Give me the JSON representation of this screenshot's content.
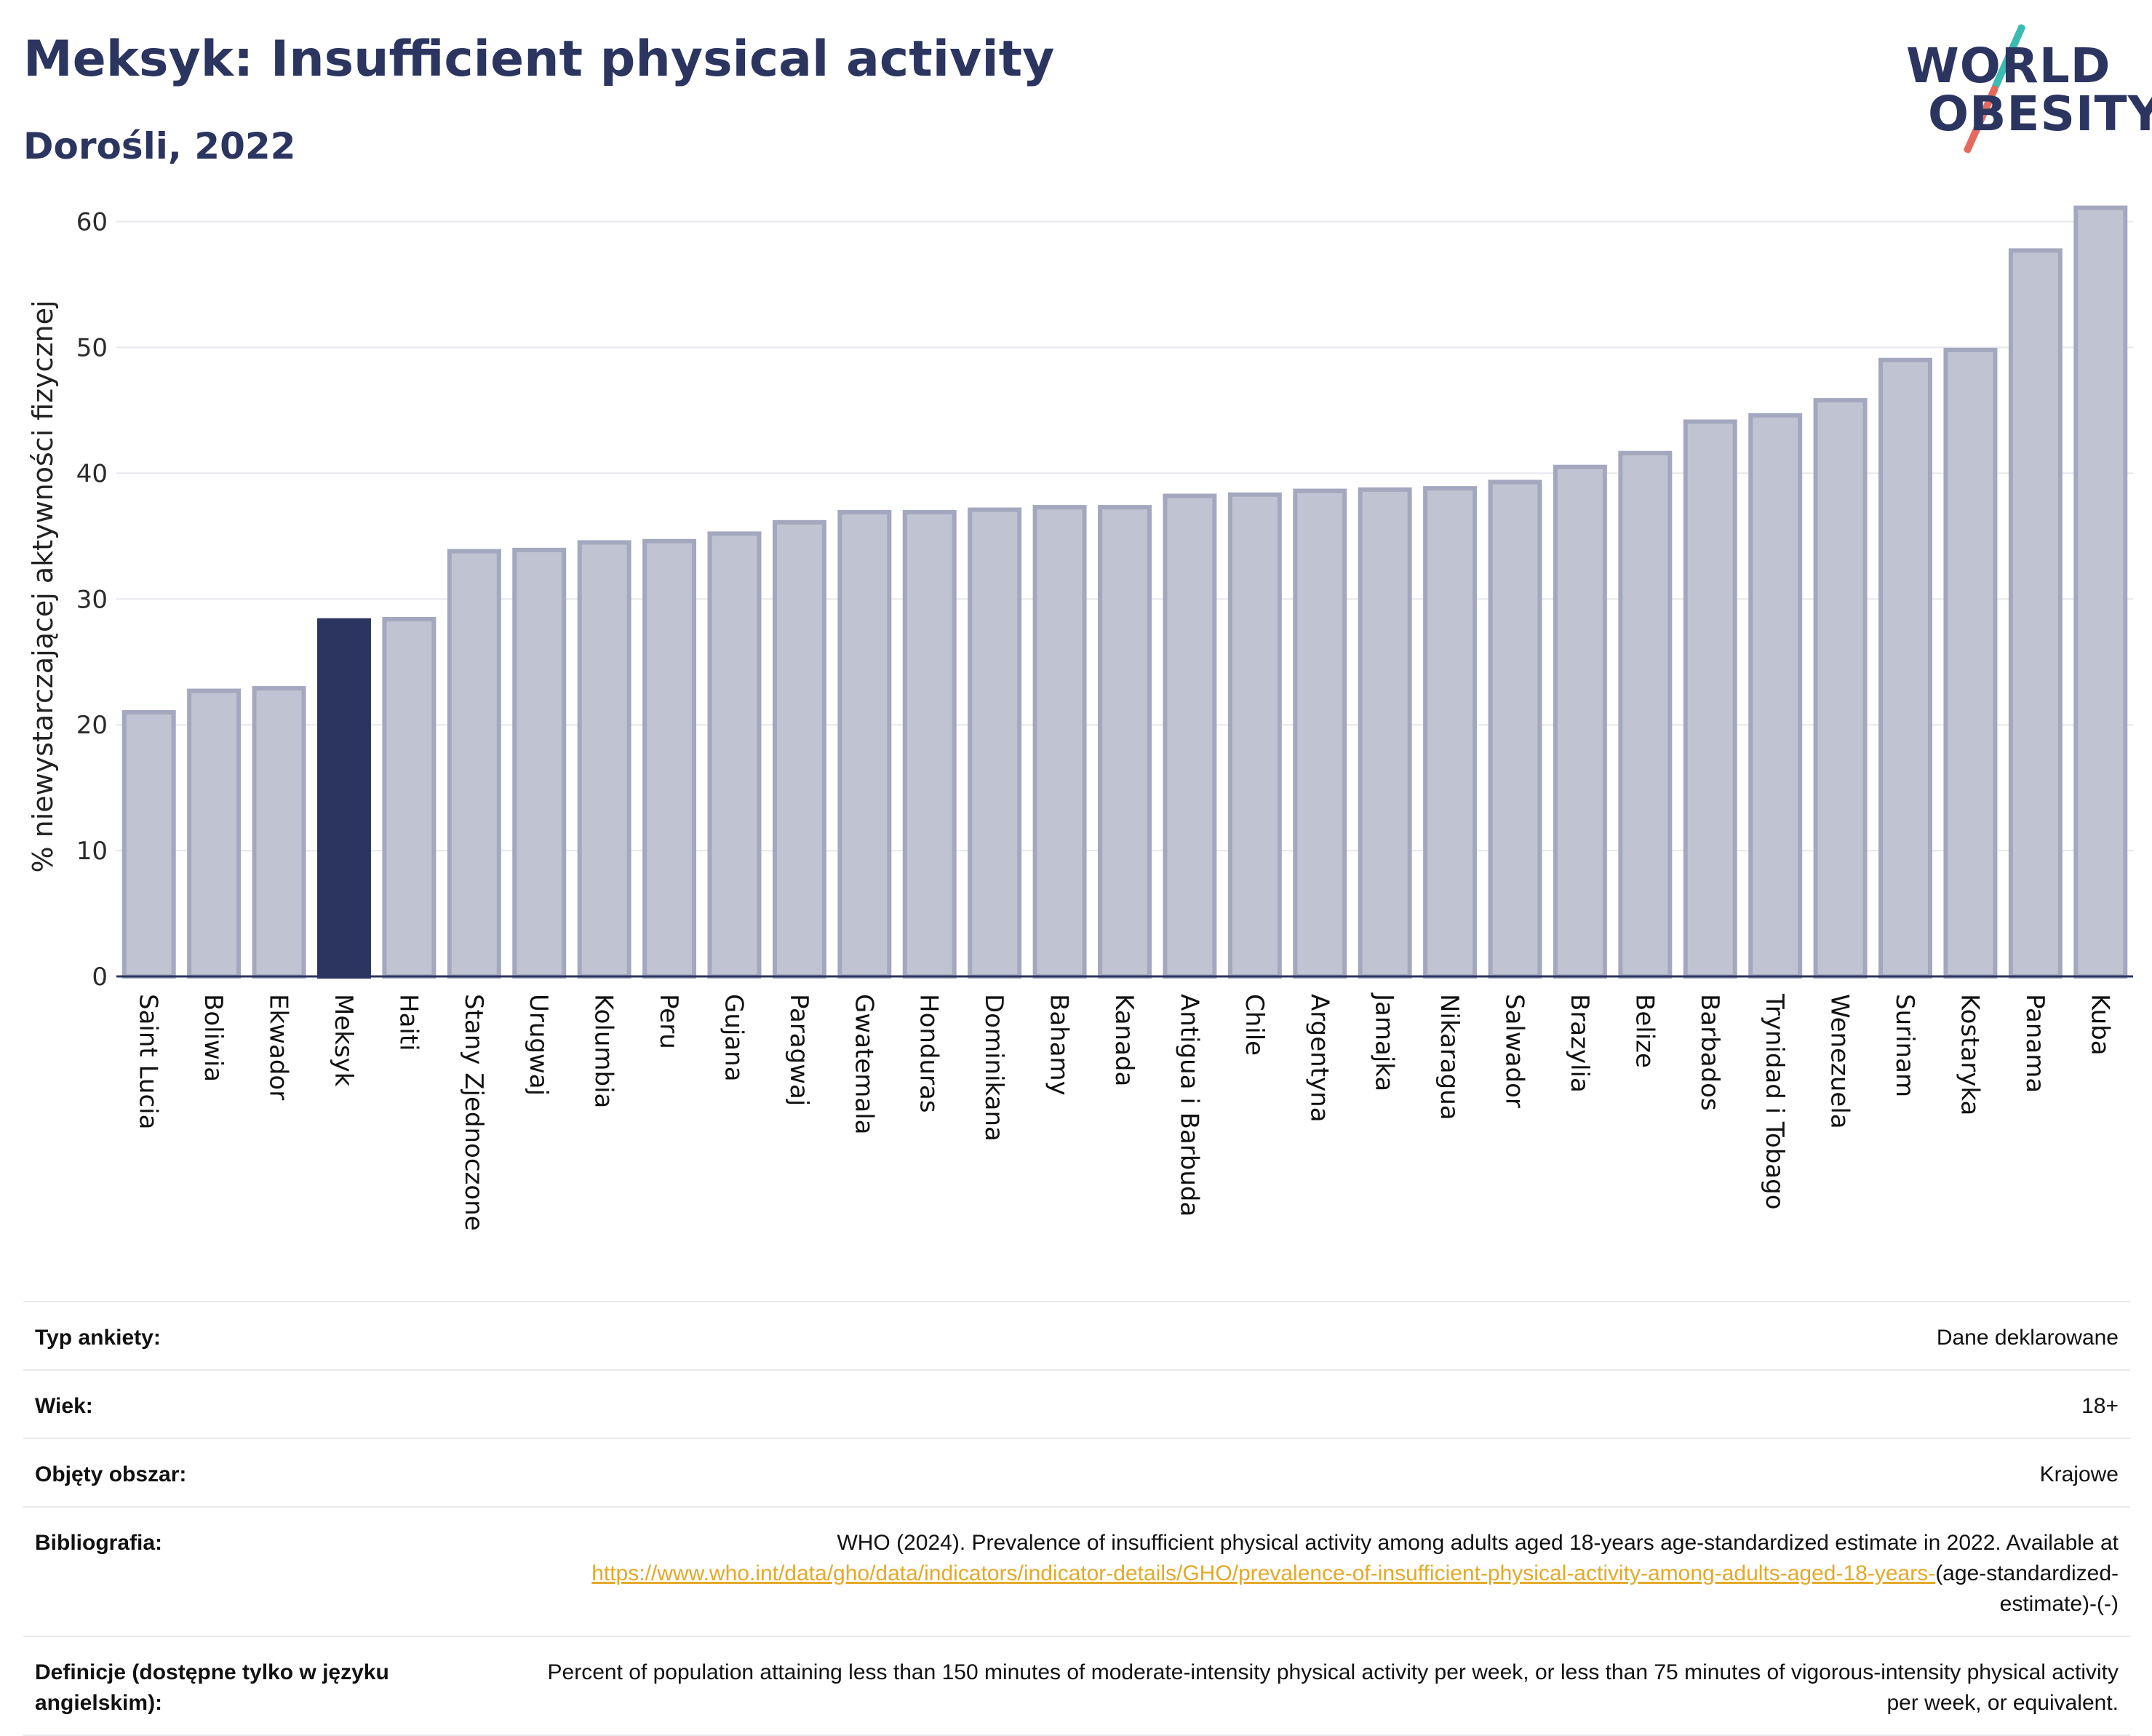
{
  "header": {
    "title": "Meksyk: Insufficient physical activity",
    "subtitle": "Dorośli, 2022"
  },
  "logo": {
    "line1": "WORLD",
    "line2": "OBESITY"
  },
  "colors": {
    "highlight": "#2b3560",
    "bar": "#c0c3d1",
    "bar_border": "#a3a8be",
    "text": "#2b3560",
    "link": "#e3a92a"
  },
  "chart_data": {
    "type": "bar",
    "ylabel": "% niewystarczającej aktywności fizycznej",
    "ylim": [
      0,
      62
    ],
    "yticks": [
      0,
      10,
      20,
      30,
      40,
      50,
      60
    ],
    "grid": true,
    "highlight": "Meksyk",
    "categories": [
      "Saint Lucia",
      "Boliwia",
      "Ekwador",
      "Meksyk",
      "Haiti",
      "Stany Zjednoczone",
      "Urugwaj",
      "Kolumbia",
      "Peru",
      "Gujana",
      "Paragwaj",
      "Gwatemala",
      "Honduras",
      "Dominikana",
      "Bahamy",
      "Kanada",
      "Antigua i Barbuda",
      "Chile",
      "Argentyna",
      "Jamajka",
      "Nikaragua",
      "Salwador",
      "Brazylia",
      "Belize",
      "Barbados",
      "Trynidad i Tobago",
      "Wenezuela",
      "Surinam",
      "Kostaryka",
      "Panama",
      "Kuba"
    ],
    "values": [
      21.0,
      22.7,
      22.9,
      28.3,
      28.4,
      33.8,
      33.9,
      34.5,
      34.6,
      35.2,
      36.1,
      36.9,
      36.9,
      37.1,
      37.3,
      37.3,
      38.2,
      38.3,
      38.6,
      38.7,
      38.8,
      39.3,
      40.5,
      41.6,
      44.1,
      44.6,
      45.8,
      49.0,
      49.8,
      57.7,
      61.1
    ]
  },
  "info": {
    "survey_label": "Typ ankiety:",
    "survey_value": "Dane deklarowane",
    "age_label": "Wiek:",
    "age_value": "18+",
    "area_label": "Objęty obszar:",
    "area_value": "Krajowe",
    "bib_label": "Bibliografia:",
    "bib_text": "WHO (2024). Prevalence of insufficient physical activity among adults aged 18-years age-standardized estimate in 2022. Available at",
    "bib_link": "https://www.who.int/data/gho/data/indicators/indicator-details/GHO/prevalence-of-insufficient-physical-activity-among-adults-aged-18-years-",
    "bib_suffix": "(age-standardized-estimate)-(-)",
    "def_label": "Definicje (dostępne tylko w języku angielskim):",
    "def_value": "Percent of population attaining less than 150 minutes of moderate-intensity physical activity per week, or less than 75 minutes of vigorous-intensity physical activity per week, or equivalent."
  }
}
